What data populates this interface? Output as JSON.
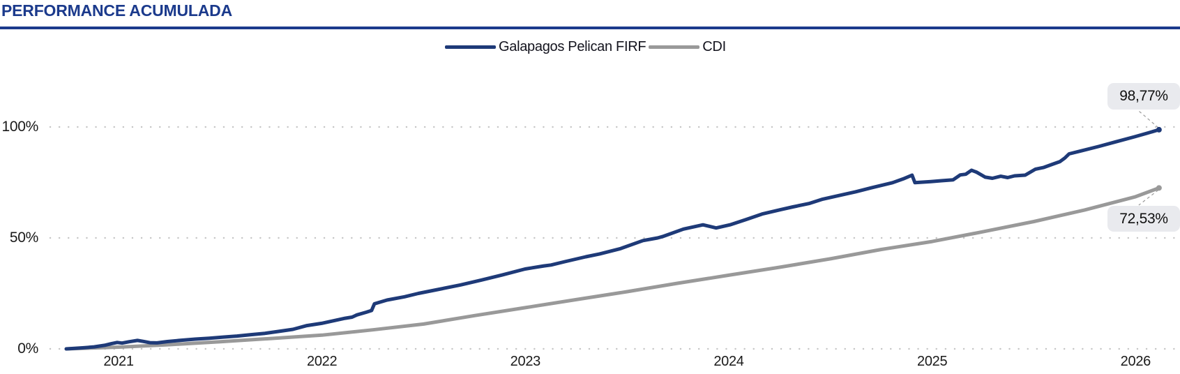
{
  "header": {
    "title": "PERFORMANCE ACUMULADA"
  },
  "legend": {
    "items": [
      {
        "label": "Galapagos Pelican FIRF",
        "color": "#1e3a78"
      },
      {
        "label": "CDI",
        "color": "#999999"
      }
    ]
  },
  "chart_data": {
    "type": "line",
    "title": "PERFORMANCE ACUMULADA",
    "grid": "dotted-horizontal",
    "legend_position": "top-center",
    "x_axis": {
      "ticks": [
        2021,
        2022,
        2023,
        2024,
        2025,
        2026
      ]
    },
    "y_axis": {
      "ticks": [
        {
          "value": 0,
          "label": "0%"
        },
        {
          "value": 50,
          "label": "50%"
        },
        {
          "value": 100,
          "label": "100%"
        }
      ],
      "range": [
        0,
        110
      ]
    },
    "colors": {
      "grid_dot": "#c5c5c5",
      "connector": "#9a9a9a",
      "accent_blue": "#1b3a8c"
    },
    "series": [
      {
        "name": "Galapagos Pelican FIRF",
        "color": "#1e3a78",
        "end_value": 98.77,
        "end_label": "98,77%",
        "points": [
          [
            2020.743,
            0
          ],
          [
            2020.777,
            0.2
          ],
          [
            2020.829,
            0.5
          ],
          [
            2020.88,
            0.9
          ],
          [
            2020.931,
            1.6
          ],
          [
            2020.966,
            2.4
          ],
          [
            2020.993,
            2.9
          ],
          [
            2021.017,
            2.6
          ],
          [
            2021.051,
            3.2
          ],
          [
            2021.093,
            3.8
          ],
          [
            2021.12,
            3.4
          ],
          [
            2021.154,
            2.8
          ],
          [
            2021.189,
            2.7
          ],
          [
            2021.24,
            3.3
          ],
          [
            2021.309,
            3.9
          ],
          [
            2021.377,
            4.4
          ],
          [
            2021.446,
            4.8
          ],
          [
            2021.514,
            5.3
          ],
          [
            2021.583,
            5.8
          ],
          [
            2021.651,
            6.4
          ],
          [
            2021.72,
            7.0
          ],
          [
            2021.789,
            7.9
          ],
          [
            2021.857,
            8.8
          ],
          [
            2021.926,
            10.5
          ],
          [
            2021.998,
            11.5
          ],
          [
            2022.063,
            12.8
          ],
          [
            2022.114,
            13.8
          ],
          [
            2022.148,
            14.3
          ],
          [
            2022.172,
            15.3
          ],
          [
            2022.217,
            16.5
          ],
          [
            2022.244,
            17.3
          ],
          [
            2022.258,
            20.3
          ],
          [
            2022.32,
            22.0
          ],
          [
            2022.406,
            23.5
          ],
          [
            2022.474,
            25.0
          ],
          [
            2022.577,
            26.9
          ],
          [
            2022.68,
            28.8
          ],
          [
            2022.783,
            31.0
          ],
          [
            2022.886,
            33.3
          ],
          [
            2022.999,
            36.0
          ],
          [
            2023.091,
            37.4
          ],
          [
            2023.126,
            37.8
          ],
          [
            2023.194,
            39.3
          ],
          [
            2023.297,
            41.5
          ],
          [
            2023.365,
            42.8
          ],
          [
            2023.468,
            45.2
          ],
          [
            2023.578,
            48.8
          ],
          [
            2023.65,
            50.0
          ],
          [
            2023.674,
            50.6
          ],
          [
            2023.777,
            54.0
          ],
          [
            2023.873,
            55.9
          ],
          [
            2023.938,
            54.5
          ],
          [
            2024.006,
            55.9
          ],
          [
            2024.085,
            58.3
          ],
          [
            2024.164,
            60.8
          ],
          [
            2024.257,
            62.8
          ],
          [
            2024.315,
            64.0
          ],
          [
            2024.394,
            65.5
          ],
          [
            2024.462,
            67.5
          ],
          [
            2024.565,
            69.6
          ],
          [
            2024.623,
            70.8
          ],
          [
            2024.702,
            72.6
          ],
          [
            2024.805,
            74.9
          ],
          [
            2024.857,
            76.6
          ],
          [
            2024.901,
            78.3
          ],
          [
            2024.915,
            74.9
          ],
          [
            2024.994,
            75.4
          ],
          [
            2025.045,
            75.8
          ],
          [
            2025.103,
            76.2
          ],
          [
            2025.138,
            78.4
          ],
          [
            2025.165,
            78.7
          ],
          [
            2025.193,
            80.5
          ],
          [
            2025.217,
            79.7
          ],
          [
            2025.261,
            77.4
          ],
          [
            2025.296,
            76.9
          ],
          [
            2025.337,
            77.8
          ],
          [
            2025.371,
            77.2
          ],
          [
            2025.405,
            78.0
          ],
          [
            2025.457,
            78.3
          ],
          [
            2025.508,
            81.0
          ],
          [
            2025.549,
            81.8
          ],
          [
            2025.594,
            83.3
          ],
          [
            2025.628,
            84.4
          ],
          [
            2025.652,
            86.0
          ],
          [
            2025.673,
            87.9
          ],
          [
            2025.731,
            89.2
          ],
          [
            2025.817,
            91.2
          ],
          [
            2025.902,
            93.3
          ],
          [
            2025.995,
            95.6
          ],
          [
            2026.057,
            97.2
          ],
          [
            2026.115,
            98.77
          ]
        ]
      },
      {
        "name": "CDI",
        "color": "#999999",
        "end_value": 72.53,
        "end_label": "72,53%",
        "points": [
          [
            2020.743,
            0
          ],
          [
            2021.0,
            0.8
          ],
          [
            2021.25,
            1.9
          ],
          [
            2021.5,
            3.2
          ],
          [
            2021.75,
            4.7
          ],
          [
            2022.0,
            6.2
          ],
          [
            2022.25,
            8.6
          ],
          [
            2022.5,
            11.2
          ],
          [
            2022.75,
            15.0
          ],
          [
            2023.0,
            18.6
          ],
          [
            2023.25,
            22.2
          ],
          [
            2023.5,
            25.8
          ],
          [
            2023.75,
            29.6
          ],
          [
            2024.0,
            33.2
          ],
          [
            2024.25,
            36.8
          ],
          [
            2024.5,
            40.6
          ],
          [
            2024.75,
            44.8
          ],
          [
            2025.0,
            48.4
          ],
          [
            2025.25,
            52.8
          ],
          [
            2025.5,
            57.4
          ],
          [
            2025.75,
            62.6
          ],
          [
            2026.0,
            68.6
          ],
          [
            2026.115,
            72.53
          ]
        ]
      }
    ]
  }
}
